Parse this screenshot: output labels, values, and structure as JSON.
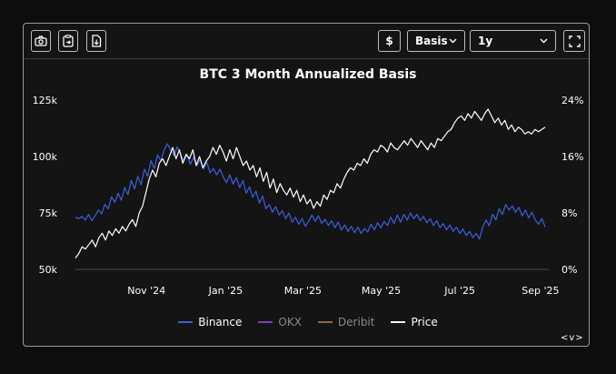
{
  "toolbar": {
    "currency_label": "$",
    "metric_select": "Basis",
    "range_select": "1y"
  },
  "chart_data": {
    "type": "line",
    "title": "BTC 3 Month Annualized Basis",
    "xlabel": "",
    "ylabel_left": "",
    "ylabel_right": "",
    "x_ticks": [
      "Nov '24",
      "Jan '25",
      "Mar '25",
      "May '25",
      "Jul '25",
      "Sep '25"
    ],
    "y_left_ticks": [
      "50k",
      "75k",
      "100k",
      "125k"
    ],
    "y_right_ticks": [
      "0%",
      "8%",
      "16%",
      "24%"
    ],
    "ylim_left": [
      50000,
      125000
    ],
    "ylim_right": [
      0,
      24
    ],
    "grid": false,
    "legend_position": "bottom",
    "series": [
      {
        "name": "Binance",
        "axis": "right",
        "color": "#3d5fe0",
        "values": [
          7.4,
          7.2,
          7.5,
          7.0,
          7.8,
          6.9,
          7.6,
          8.4,
          7.9,
          9.2,
          8.6,
          10.3,
          9.5,
          10.8,
          9.8,
          11.6,
          10.6,
          12.6,
          11.4,
          13.2,
          12.0,
          14.2,
          13.2,
          15.4,
          14.3,
          16.2,
          15.4,
          16.9,
          17.8,
          17.0,
          16.1,
          17.4,
          16.3,
          15.4,
          16.2,
          14.9,
          15.9,
          14.7,
          15.6,
          14.2,
          15.2,
          13.7,
          14.3,
          13.4,
          14.2,
          13.1,
          12.3,
          13.4,
          12.1,
          13.0,
          11.6,
          12.6,
          10.8,
          11.7,
          10.2,
          11.1,
          9.4,
          10.4,
          8.6,
          9.2,
          8.1,
          8.9,
          7.7,
          8.3,
          7.2,
          8.0,
          6.7,
          7.4,
          6.4,
          7.2,
          6.1,
          6.8,
          7.7,
          6.8,
          7.6,
          6.5,
          7.1,
          6.2,
          6.9,
          5.9,
          6.7,
          5.6,
          6.3,
          5.4,
          6.1,
          5.2,
          6.0,
          5.1,
          5.8,
          5.3,
          6.4,
          5.6,
          6.6,
          5.9,
          6.8,
          6.2,
          7.4,
          6.5,
          7.7,
          6.7,
          7.8,
          7.0,
          8.0,
          7.2,
          7.8,
          6.9,
          7.5,
          6.6,
          7.2,
          6.2,
          6.9,
          5.9,
          6.5,
          5.6,
          6.3,
          5.4,
          6.0,
          5.1,
          5.7,
          4.8,
          5.4,
          4.5,
          5.1,
          4.3,
          6.0,
          7.0,
          6.2,
          7.8,
          7.0,
          8.6,
          7.8,
          9.2,
          8.4,
          9.0,
          8.1,
          8.8,
          7.6,
          8.4,
          7.3,
          8.1,
          7.0,
          6.4,
          7.2,
          6.0
        ]
      },
      {
        "name": "OKX",
        "axis": "right",
        "color": "#7b3fbf",
        "values": []
      },
      {
        "name": "Deribit",
        "axis": "right",
        "color": "#8a6a3a",
        "values": []
      },
      {
        "name": "Price",
        "axis": "left",
        "color": "#ffffff",
        "values": [
          55000,
          57000,
          60000,
          59000,
          61000,
          63000,
          60000,
          64000,
          66000,
          63000,
          67000,
          65000,
          68000,
          66000,
          69000,
          67000,
          70000,
          72000,
          69000,
          75000,
          78000,
          84000,
          90000,
          94000,
          91000,
          97000,
          99000,
          96000,
          100000,
          104000,
          99000,
          103000,
          97000,
          101000,
          99000,
          103000,
          96000,
          100000,
          95000,
          98000,
          100000,
          104000,
          101000,
          105000,
          102000,
          98000,
          103000,
          99000,
          104000,
          100000,
          96000,
          98000,
          94000,
          96000,
          91000,
          95000,
          89000,
          93000,
          86000,
          90000,
          84000,
          88000,
          85000,
          83000,
          86000,
          82000,
          85000,
          80000,
          83000,
          79000,
          81000,
          77000,
          80000,
          78000,
          83000,
          81000,
          85000,
          84000,
          88000,
          86000,
          90000,
          93000,
          95000,
          94000,
          97000,
          96000,
          99000,
          97000,
          101000,
          103000,
          102000,
          105000,
          104000,
          102000,
          106000,
          104000,
          103000,
          105000,
          107000,
          105000,
          108000,
          106000,
          104000,
          107000,
          105000,
          103000,
          106000,
          104000,
          108000,
          107000,
          109000,
          111000,
          112000,
          115000,
          117000,
          118000,
          116000,
          119000,
          117000,
          120000,
          118000,
          116000,
          119000,
          121000,
          118000,
          115000,
          117000,
          114000,
          116000,
          112000,
          114000,
          111000,
          113000,
          112000,
          110000,
          111000,
          110000,
          112000,
          111000,
          112000,
          113000
        ]
      }
    ]
  }
}
